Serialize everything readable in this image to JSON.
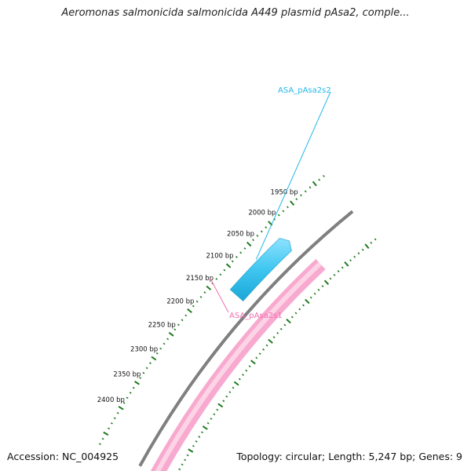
{
  "title": "Aeromonas salmonicida salmonicida A449 plasmid pAsa2, comple...",
  "footer": {
    "accession": "Accession: NC_004925",
    "summary": "Topology: circular; Length: 5,247 bp; Genes: 9"
  },
  "plasmid": {
    "length_bp": 5247,
    "backbone_color": "#7f7f7f",
    "tick_color": "#1e7a1e"
  },
  "ticks": [
    {
      "label": "1950 bp"
    },
    {
      "label": "2000 bp"
    },
    {
      "label": "2050 bp"
    },
    {
      "label": "2100 bp"
    },
    {
      "label": "2150 bp"
    },
    {
      "label": "2200 bp"
    },
    {
      "label": "2250 bp"
    },
    {
      "label": "2300 bp"
    },
    {
      "label": "2350 bp"
    },
    {
      "label": "2400 bp"
    }
  ],
  "genes": [
    {
      "name": "ASA_pAsa2s2",
      "color": "#3fc6f0",
      "label_color": "#22b8e8",
      "strand": "forward"
    },
    {
      "name": "ASA_pAsa2s1",
      "color": "#f8a9cf",
      "label_color": "#f06fb0",
      "strand": "reverse"
    }
  ]
}
